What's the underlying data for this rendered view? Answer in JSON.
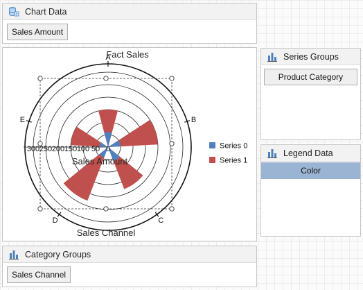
{
  "chart_data_panel": {
    "title": "Chart Data",
    "fields": [
      "Sales Amount"
    ]
  },
  "series_groups_panel": {
    "title": "Series Groups",
    "fields": [
      "Product Category"
    ]
  },
  "legend_data_panel": {
    "title": "Legend Data",
    "fields": [
      "Color"
    ]
  },
  "category_groups_panel": {
    "title": "Category Groups",
    "fields": [
      "Sales Channel"
    ]
  },
  "chart_data": {
    "type": "radar-column",
    "title": "Fact Sales",
    "xlabel": "Sales Channel",
    "ylabel": "Sales Amount",
    "categories": [
      "A",
      "B",
      "C",
      "D",
      "E"
    ],
    "radial_ticks": [
      "300",
      "250",
      "200",
      "150",
      "100",
      "50",
      "0"
    ],
    "rmax": 300,
    "legend_position": "right",
    "series": [
      {
        "name": "Series 0",
        "color": "#4f81bd",
        "values": [
          60,
          50,
          60,
          45,
          35
        ]
      },
      {
        "name": "Series 1",
        "color": "#c0504d",
        "values": [
          150,
          200,
          180,
          230,
          150
        ]
      }
    ]
  }
}
